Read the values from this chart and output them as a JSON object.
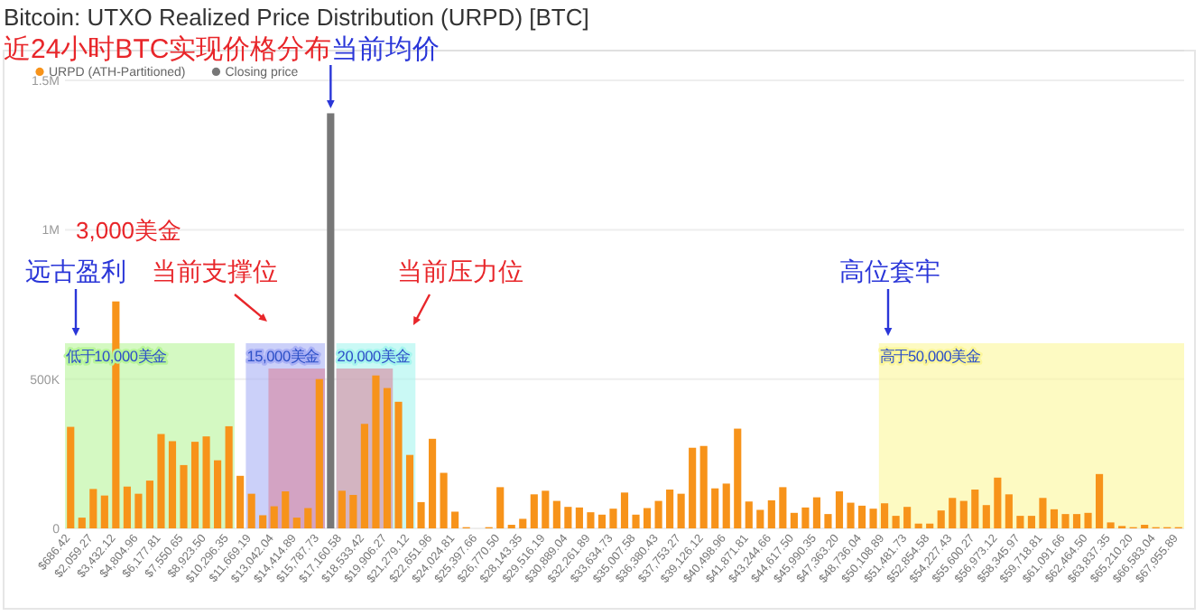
{
  "chart_data": {
    "type": "bar",
    "title": "Bitcoin: UTXO Realized Price Distribution (URPD) [BTC]",
    "categories": [
      "$686.42",
      null,
      "$2,059.27",
      null,
      "$3,432.12",
      null,
      "$4,804.96",
      null,
      "$6,177.81",
      null,
      "$7,550.65",
      null,
      "$8,923.50",
      null,
      "$10,296.35",
      null,
      "$11,669.19",
      null,
      "$13,042.04",
      null,
      "$14,414.89",
      null,
      "$15,787.73",
      null,
      "$17,160.58",
      null,
      "$18,533.42",
      null,
      "$19,906.27",
      null,
      "$21,279.12",
      null,
      "$22,651.96",
      null,
      "$24,024.81",
      null,
      "$25,397.66",
      null,
      "$26,770.50",
      null,
      "$28,143.35",
      null,
      "$29,516.19",
      null,
      "$30,889.04",
      null,
      "$32,261.89",
      null,
      "$33,634.73",
      null,
      "$35,007.58",
      null,
      "$36,380.43",
      null,
      "$37,753.27",
      null,
      "$39,126.12",
      null,
      "$40,498.96",
      null,
      "$41,871.81",
      null,
      "$43,244.66",
      null,
      "$44,617.50",
      null,
      "$45,990.35",
      null,
      "$47,363.20",
      null,
      "$48,736.04",
      null,
      "$50,108.89",
      null,
      "$51,481.73",
      null,
      "$52,854.58",
      null,
      "$54,227.43",
      null,
      "$55,600.27",
      null,
      "$56,973.12",
      null,
      "$58,345.97",
      null,
      "$59,718.81",
      null,
      "$61,091.66",
      null,
      "$62,464.50",
      null,
      "$63,837.35",
      null,
      "$65,210.20",
      null,
      "$66,583.04",
      null,
      "$67,955.89"
    ],
    "series": [
      {
        "name": "URPD (ATH-Partitioned)",
        "color": "#f7931a",
        "values": [
          340000,
          36000,
          132000,
          110000,
          760000,
          140000,
          116000,
          160000,
          316000,
          292000,
          212000,
          290000,
          308000,
          228000,
          342000,
          176000,
          116000,
          44000,
          74000,
          124000,
          36000,
          68000,
          500000,
          null,
          126000,
          112000,
          350000,
          512000,
          470000,
          424000,
          246000,
          88000,
          300000,
          186000,
          56000,
          4000,
          0,
          4000,
          138000,
          12000,
          32000,
          114000,
          126000,
          92000,
          72000,
          70000,
          54000,
          46000,
          66000,
          120000,
          46000,
          68000,
          92000,
          130000,
          116000,
          270000,
          276000,
          134000,
          150000,
          334000,
          90000,
          62000,
          94000,
          138000,
          52000,
          70000,
          104000,
          48000,
          124000,
          86000,
          76000,
          66000,
          84000,
          42000,
          72000,
          16000,
          16000,
          60000,
          102000,
          92000,
          130000,
          78000,
          170000,
          114000,
          42000,
          42000,
          102000,
          64000,
          48000,
          48000,
          52000,
          182000,
          20000,
          8000,
          4000,
          12000,
          4000,
          4000,
          4000
        ]
      },
      {
        "name": "Closing price",
        "color": "#777777",
        "values": [
          null,
          null,
          null,
          null,
          null,
          null,
          null,
          null,
          null,
          null,
          null,
          null,
          null,
          null,
          null,
          null,
          null,
          null,
          null,
          null,
          null,
          null,
          null,
          1390000,
          null,
          null,
          null,
          null,
          null,
          null,
          null,
          null,
          null,
          null,
          null,
          null,
          null,
          null,
          null,
          null,
          null,
          null,
          null,
          null,
          null,
          null,
          null,
          null,
          null,
          null,
          null,
          null,
          null,
          null,
          null,
          null,
          null,
          null,
          null,
          null,
          null,
          null,
          null,
          null,
          null,
          null,
          null,
          null,
          null,
          null,
          null,
          null,
          null,
          null,
          null,
          null,
          null,
          null,
          null,
          null,
          null,
          null,
          null,
          null,
          null,
          null,
          null,
          null,
          null,
          null,
          null,
          null,
          null,
          null,
          null,
          null,
          null,
          null,
          null
        ]
      }
    ],
    "ylim": [
      0,
      1600000
    ],
    "yticks": [
      {
        "value": 0,
        "label": "0"
      },
      {
        "value": 500000,
        "label": "500K"
      },
      {
        "value": 1000000,
        "label": "1M"
      },
      {
        "value": 1500000,
        "label": "1.5M"
      }
    ],
    "grid": "y",
    "legend": "top left",
    "bands": [
      {
        "axis": "x",
        "from": "$686.42",
        "to": "$10,296.35",
        "label": "低于10,000美金",
        "color": "#b8f59a"
      },
      {
        "axis": "x",
        "from": "$11,669.19",
        "to": "$15,787.73",
        "label": "15,000美金",
        "color": "#a9b0f5"
      },
      {
        "axis": "x",
        "from": "$13,042.04",
        "to": "$15,787.73",
        "color": "#d9869e"
      },
      {
        "axis": "x",
        "from": "$17,160.58",
        "to": "$21,279.12",
        "label": "20,000美金",
        "color": "#a6f5ee"
      },
      {
        "axis": "x",
        "from": "$17,160.58",
        "to": "$19,906.27",
        "color": "#d9869e"
      },
      {
        "axis": "x",
        "from": "$50,108.89",
        "to": "$67,955.89",
        "label": "高于50,000美金",
        "color": "#fbf69a"
      }
    ],
    "annotations": [
      "近24小时BTC实现价格分布",
      "当前均价",
      "3,000美金",
      "远古盈利",
      "当前支撑位",
      "当前压力位",
      "高位套牢"
    ]
  }
}
